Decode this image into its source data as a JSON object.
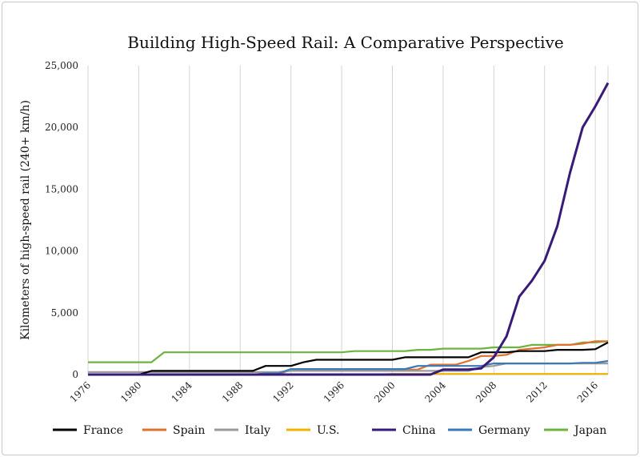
{
  "chart_data": {
    "type": "line",
    "title": "Building High-Speed Rail: A Comparative Perspective",
    "xlabel": "",
    "ylabel": "Kilometers of high-speed rail (240+ km/h)",
    "x": [
      1976,
      1977,
      1978,
      1979,
      1980,
      1981,
      1982,
      1983,
      1984,
      1985,
      1986,
      1987,
      1988,
      1989,
      1990,
      1991,
      1992,
      1993,
      1994,
      1995,
      1996,
      1997,
      1998,
      1999,
      2000,
      2001,
      2002,
      2003,
      2004,
      2005,
      2006,
      2007,
      2008,
      2009,
      2010,
      2011,
      2012,
      2013,
      2014,
      2015,
      2016,
      2017
    ],
    "xticks": [
      1976,
      1980,
      1984,
      1988,
      1992,
      1996,
      2000,
      2004,
      2008,
      2012,
      2016
    ],
    "yticks": [
      0,
      5000,
      10000,
      15000,
      20000,
      25000
    ],
    "ytick_labels": [
      "0",
      "5,000",
      "10,000",
      "15,000",
      "20,000",
      "25,000"
    ],
    "xlim": [
      1976,
      2017
    ],
    "ylim": [
      0,
      25000
    ],
    "grid": "vertical",
    "legend_position": "bottom",
    "series": [
      {
        "name": "France",
        "color": "#000000",
        "values": [
          0,
          0,
          0,
          0,
          0,
          300,
          300,
          300,
          300,
          300,
          300,
          300,
          300,
          300,
          700,
          700,
          700,
          1000,
          1200,
          1200,
          1200,
          1200,
          1200,
          1200,
          1200,
          1400,
          1400,
          1400,
          1400,
          1400,
          1400,
          1800,
          1800,
          1800,
          1900,
          1900,
          1900,
          2000,
          2000,
          2000,
          2050,
          2600
        ]
      },
      {
        "name": "Spain",
        "color": "#e07030",
        "values": [
          0,
          0,
          0,
          0,
          0,
          0,
          0,
          0,
          0,
          0,
          0,
          0,
          0,
          0,
          0,
          0,
          400,
          400,
          400,
          400,
          400,
          400,
          400,
          400,
          400,
          400,
          400,
          800,
          800,
          800,
          1100,
          1500,
          1500,
          1600,
          2000,
          2100,
          2200,
          2400,
          2400,
          2500,
          2700,
          2700
        ]
      },
      {
        "name": "Italy",
        "color": "#9a9a9a",
        "values": [
          200,
          200,
          200,
          200,
          200,
          200,
          200,
          200,
          200,
          200,
          200,
          200,
          200,
          200,
          200,
          200,
          300,
          300,
          300,
          300,
          300,
          300,
          300,
          300,
          300,
          300,
          300,
          300,
          300,
          300,
          300,
          600,
          700,
          900,
          900,
          900,
          900,
          900,
          900,
          900,
          900,
          900
        ]
      },
      {
        "name": "U.S.",
        "color": "#f0b400",
        "values": [
          0,
          0,
          0,
          0,
          0,
          0,
          0,
          0,
          0,
          0,
          0,
          0,
          0,
          0,
          0,
          0,
          0,
          0,
          0,
          0,
          0,
          0,
          0,
          0,
          50,
          50,
          50,
          50,
          50,
          50,
          50,
          50,
          50,
          50,
          50,
          50,
          50,
          50,
          50,
          50,
          50,
          50
        ]
      },
      {
        "name": "China",
        "color": "#3a1a78",
        "values": [
          0,
          0,
          0,
          0,
          0,
          0,
          0,
          0,
          0,
          0,
          0,
          0,
          0,
          0,
          0,
          0,
          0,
          0,
          0,
          0,
          0,
          0,
          0,
          0,
          0,
          0,
          0,
          0,
          400,
          400,
          400,
          500,
          1400,
          3100,
          6300,
          7600,
          9200,
          12000,
          16300,
          20000,
          21700,
          23600
        ]
      },
      {
        "name": "Germany",
        "color": "#3a7ab8",
        "values": [
          0,
          0,
          0,
          0,
          0,
          0,
          0,
          0,
          0,
          0,
          0,
          0,
          0,
          0,
          100,
          100,
          450,
          450,
          450,
          450,
          450,
          450,
          450,
          450,
          450,
          450,
          700,
          700,
          700,
          700,
          700,
          700,
          900,
          900,
          900,
          900,
          900,
          900,
          900,
          950,
          950,
          1100
        ]
      },
      {
        "name": "Japan",
        "color": "#6db33f",
        "values": [
          1000,
          1000,
          1000,
          1000,
          1000,
          1000,
          1800,
          1800,
          1800,
          1800,
          1800,
          1800,
          1800,
          1800,
          1800,
          1800,
          1800,
          1800,
          1800,
          1800,
          1800,
          1900,
          1900,
          1900,
          1900,
          1900,
          2000,
          2000,
          2100,
          2100,
          2100,
          2100,
          2200,
          2200,
          2200,
          2400,
          2400,
          2400,
          2400,
          2600,
          2600,
          2700
        ]
      }
    ]
  }
}
